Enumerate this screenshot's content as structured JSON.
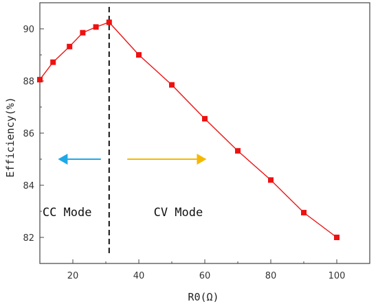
{
  "chart_data": {
    "type": "line",
    "xlabel": "R0(Ω)",
    "ylabel": "Efficiency(%)",
    "xlim": [
      10,
      110
    ],
    "ylim": [
      81,
      91
    ],
    "xticks": [
      20,
      40,
      60,
      80,
      100
    ],
    "yticks": [
      82,
      84,
      86,
      88,
      90
    ],
    "grid": false,
    "series": [
      {
        "color": "#ee1111",
        "marker": "square",
        "x": [
          10,
          14,
          19,
          23,
          27,
          31,
          40,
          50,
          60,
          70,
          80,
          90,
          100
        ],
        "y": [
          88.05,
          88.72,
          89.32,
          89.85,
          90.07,
          90.25,
          89.0,
          87.85,
          86.55,
          85.32,
          84.2,
          82.95,
          82.0
        ]
      }
    ],
    "divider": {
      "x": 31,
      "style": "dashed",
      "color": "#111111"
    },
    "annotations": [
      {
        "text": "CC Mode",
        "x": 10.8,
        "y": 83.0
      },
      {
        "text": "CV Mode",
        "x": 44.5,
        "y": 83.0
      }
    ],
    "arrows": [
      {
        "direction": "left",
        "color": "#1ea8e8",
        "from_x": 28.5,
        "to_x": 15.5,
        "y": 85.0
      },
      {
        "direction": "right",
        "color": "#f5b800",
        "from_x": 36.5,
        "to_x": 60.5,
        "y": 85.0
      }
    ]
  }
}
